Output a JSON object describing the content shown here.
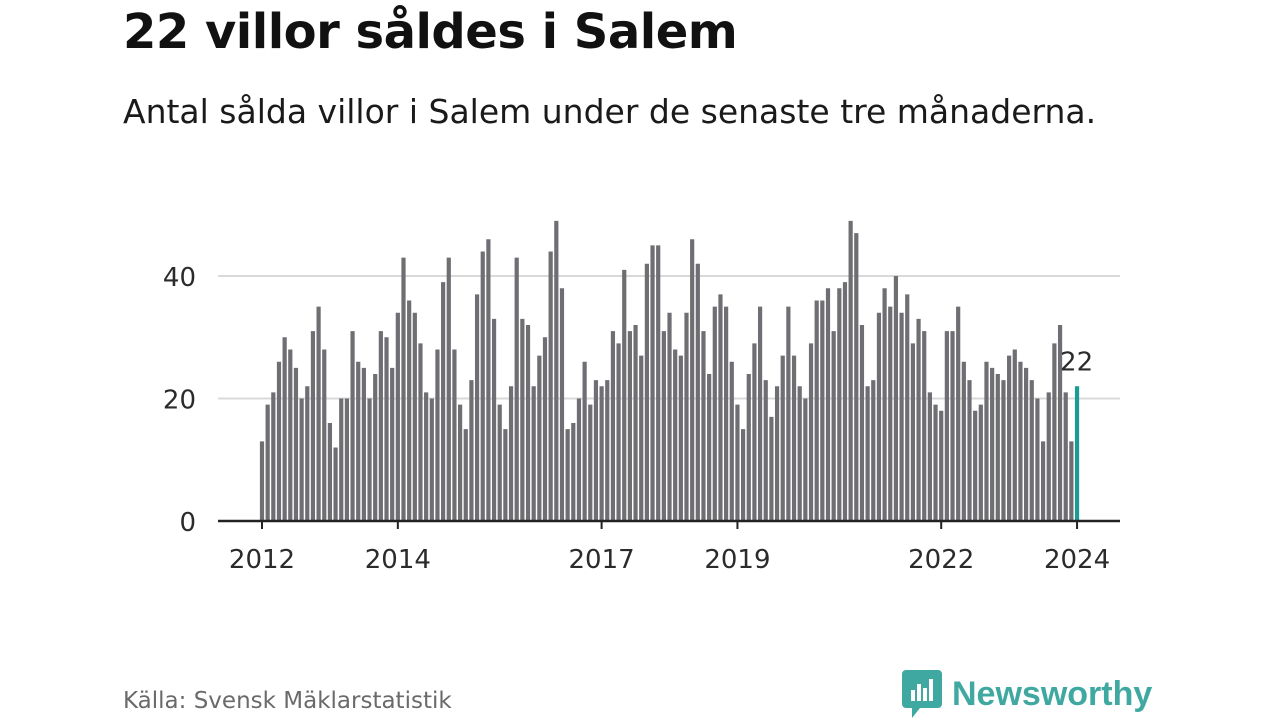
{
  "title": "22 villor såldes i Salem",
  "subtitle": "Antal sålda villor i Salem under de senaste tre månaderna.",
  "source": "Källa: Svensk Mäklarstatistik",
  "brand": "Newsworthy",
  "colors": {
    "bar": "#6f6e73",
    "highlight": "#1a9c95",
    "brand": "#3fa8a0",
    "grid": "#d9d9d9"
  },
  "chart_data": {
    "type": "bar",
    "title": "22 villor såldes i Salem",
    "xlabel": "",
    "ylabel": "",
    "ylim": [
      0,
      50
    ],
    "yticks": [
      0,
      20,
      40
    ],
    "grid": true,
    "x_start": "2012-03",
    "x_tick_labels": [
      {
        "label": "2012",
        "index": 0
      },
      {
        "label": "2014",
        "index": 24
      },
      {
        "label": "2017",
        "index": 60
      },
      {
        "label": "2019",
        "index": 84
      },
      {
        "label": "2022",
        "index": 120
      },
      {
        "label": "2024",
        "index": 144
      }
    ],
    "values": [
      13,
      19,
      21,
      26,
      30,
      28,
      25,
      20,
      22,
      31,
      35,
      28,
      16,
      12,
      20,
      20,
      31,
      26,
      25,
      20,
      24,
      31,
      30,
      25,
      34,
      43,
      36,
      34,
      29,
      21,
      20,
      28,
      39,
      43,
      28,
      19,
      15,
      23,
      37,
      44,
      46,
      33,
      19,
      15,
      22,
      43,
      33,
      32,
      22,
      27,
      30,
      44,
      49,
      38,
      15,
      16,
      20,
      26,
      19,
      23,
      22,
      23,
      31,
      29,
      41,
      31,
      32,
      27,
      42,
      45,
      45,
      31,
      34,
      28,
      27,
      34,
      46,
      42,
      31,
      24,
      35,
      37,
      35,
      26,
      19,
      15,
      24,
      29,
      35,
      23,
      17,
      22,
      27,
      35,
      27,
      22,
      20,
      29,
      36,
      36,
      38,
      31,
      38,
      39,
      49,
      47,
      32,
      22,
      23,
      34,
      38,
      35,
      40,
      34,
      37,
      29,
      33,
      31,
      21,
      19,
      18,
      31,
      31,
      35,
      26,
      23,
      18,
      19,
      26,
      25,
      24,
      23,
      27,
      28,
      26,
      25,
      23,
      20,
      13,
      21,
      29,
      32,
      21,
      13,
      22
    ],
    "highlight_index": 144,
    "highlight_label": "22"
  }
}
